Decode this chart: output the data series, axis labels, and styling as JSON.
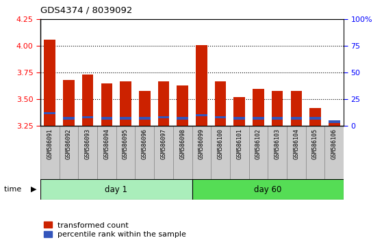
{
  "title": "GDS4374 / 8039092",
  "samples": [
    "GSM586091",
    "GSM586092",
    "GSM586093",
    "GSM586094",
    "GSM586095",
    "GSM586096",
    "GSM586097",
    "GSM586098",
    "GSM586099",
    "GSM586100",
    "GSM586101",
    "GSM586102",
    "GSM586103",
    "GSM586104",
    "GSM586105",
    "GSM586106"
  ],
  "red_values": [
    4.06,
    3.68,
    3.73,
    3.65,
    3.67,
    3.58,
    3.67,
    3.63,
    4.01,
    3.67,
    3.52,
    3.6,
    3.58,
    3.58,
    3.42,
    3.3
  ],
  "blue_values": [
    3.37,
    3.32,
    3.33,
    3.32,
    3.32,
    3.32,
    3.33,
    3.32,
    3.35,
    3.33,
    3.32,
    3.32,
    3.32,
    3.32,
    3.32,
    3.29
  ],
  "day1_count": 8,
  "day60_count": 8,
  "y_min": 3.25,
  "y_max": 4.25,
  "y_ticks_left": [
    3.25,
    3.5,
    3.75,
    4.0,
    4.25
  ],
  "y_ticks_right": [
    0,
    25,
    50,
    75,
    100
  ],
  "red_color": "#CC2200",
  "blue_color": "#3355BB",
  "day1_color": "#AAEEBB",
  "day60_color": "#55DD55",
  "bar_bg_color": "#CCCCCC",
  "bar_width": 0.6,
  "legend_red": "transformed count",
  "legend_blue": "percentile rank within the sample",
  "blue_bar_height": 0.022
}
